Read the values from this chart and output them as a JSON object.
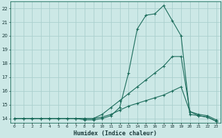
{
  "xlabel": "Humidex (Indice chaleur)",
  "x": [
    0,
    1,
    2,
    3,
    4,
    5,
    6,
    7,
    8,
    9,
    10,
    11,
    12,
    13,
    14,
    15,
    16,
    17,
    18,
    19,
    20,
    21,
    22,
    23
  ],
  "line1": [
    14,
    14,
    14,
    14,
    14,
    14,
    14,
    14,
    13.9,
    13.9,
    14.0,
    14.2,
    14.8,
    17.3,
    20.5,
    21.5,
    21.6,
    22.2,
    21.1,
    20.0,
    14.3,
    14.2,
    14.1,
    13.8
  ],
  "line2": [
    14,
    14,
    14,
    14,
    14,
    14,
    14,
    14,
    14,
    14,
    14.3,
    14.8,
    15.3,
    15.8,
    16.3,
    16.8,
    17.3,
    17.8,
    18.5,
    18.5,
    14.5,
    14.3,
    14.2,
    13.9
  ],
  "line3": [
    14,
    14,
    14,
    14,
    14,
    14,
    14,
    14,
    14,
    14,
    14.1,
    14.3,
    14.6,
    14.9,
    15.1,
    15.3,
    15.5,
    15.7,
    16.0,
    16.3,
    14.5,
    14.2,
    14.1,
    13.8
  ],
  "line_color": "#1a6b5a",
  "bg_color": "#cce8e6",
  "grid_color": "#aacfcd",
  "text_color": "#1a3a3a",
  "ylim": [
    13.7,
    22.5
  ],
  "xlim": [
    -0.5,
    23.5
  ],
  "yticks": [
    14,
    15,
    16,
    17,
    18,
    19,
    20,
    21,
    22
  ],
  "xtick_labels": [
    "0",
    "1",
    "2",
    "3",
    "4",
    "5",
    "6",
    "7",
    "8",
    "9",
    "10",
    "11",
    "12",
    "13",
    "14",
    "15",
    "16",
    "17",
    "18",
    "19",
    "20",
    "21",
    "22",
    "23"
  ]
}
